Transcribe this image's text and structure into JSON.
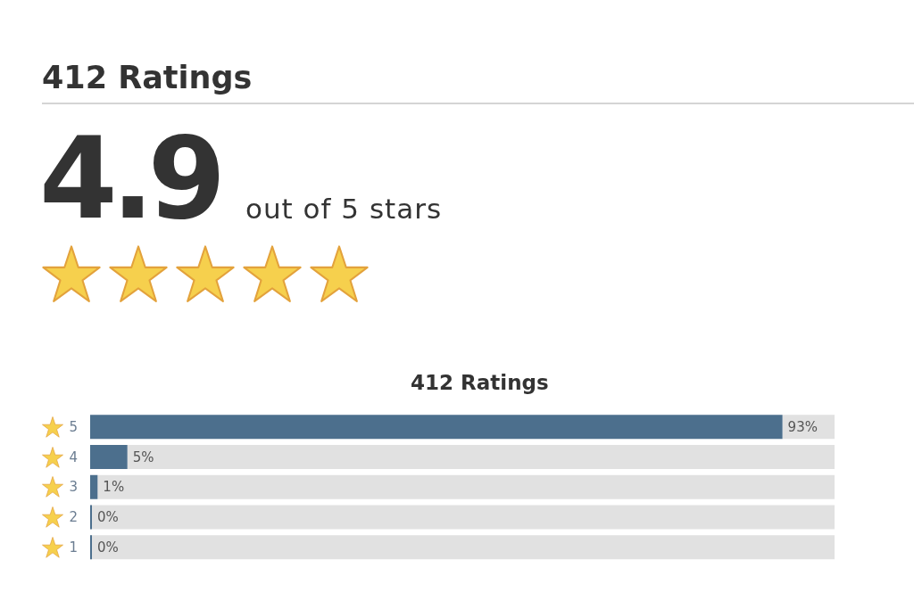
{
  "chart_data": {
    "type": "bar",
    "orientation": "horizontal",
    "stacked": true,
    "title": "412 Ratings",
    "annotations": [
      "412 Ratings",
      "4.9",
      "out of 5 stars"
    ],
    "categories": [
      "5",
      "4",
      "3",
      "2",
      "1"
    ],
    "series": [
      {
        "color": "#4c6f8d",
        "values": [
          93,
          5,
          1,
          0,
          0
        ],
        "value_labels": [
          "93%",
          "5%",
          "1%",
          "0%",
          "0%"
        ]
      },
      {
        "color": "#e1e1e1",
        "values": [
          7,
          95,
          99,
          100,
          100
        ]
      }
    ],
    "xlim": [
      0,
      100
    ],
    "tick_labels": "y"
  }
}
